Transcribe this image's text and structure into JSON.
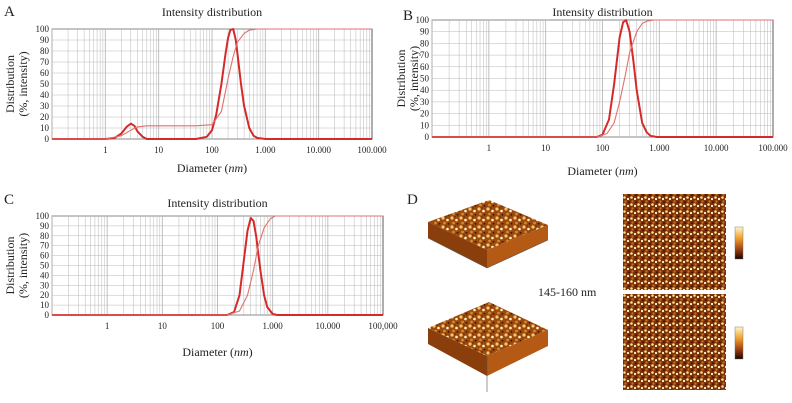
{
  "panels": [
    {
      "letter": "A"
    },
    {
      "letter": "B"
    },
    {
      "letter": "C"
    },
    {
      "letter": "D"
    }
  ],
  "afm_label": "145-160 nm",
  "colors": {
    "curve": "#d42a2a",
    "cumulative": "#e07070",
    "grid": "#b8b8b8",
    "axis": "#333333"
  },
  "chart_data": [
    {
      "type": "line",
      "title": "Intensity distribution",
      "xlabel": "Diameter (nm)",
      "ylabel": "Distribution (%, intensity)",
      "xscale": "log",
      "xlim": [
        0.1,
        100000
      ],
      "ylim": [
        0,
        100
      ],
      "xticks": [
        "1",
        "10",
        "100",
        "1.000",
        "10.000",
        "100.000"
      ],
      "yticks": [
        0,
        10,
        20,
        30,
        40,
        50,
        60,
        70,
        80,
        90,
        100
      ],
      "grid": true,
      "series": [
        {
          "role": "distribution",
          "x": [
            1,
            1.5,
            2,
            2.5,
            3,
            3.5,
            4,
            5,
            6,
            8,
            10,
            20,
            50,
            80,
            100,
            120,
            150,
            180,
            200,
            220,
            250,
            280,
            300,
            350,
            400,
            500,
            600,
            700,
            1000
          ],
          "y": [
            0,
            1,
            5,
            11,
            14,
            12,
            7,
            2,
            0,
            0,
            0,
            0,
            0,
            2,
            8,
            22,
            50,
            78,
            92,
            99,
            100,
            90,
            78,
            50,
            30,
            10,
            3,
            1,
            0
          ]
        },
        {
          "role": "cumulative",
          "x": [
            1,
            2,
            3,
            4,
            6,
            10,
            50,
            100,
            150,
            200,
            250,
            300,
            400,
            500,
            700,
            1000,
            100000
          ],
          "y": [
            0,
            3,
            8,
            11,
            12,
            12,
            12,
            13,
            25,
            55,
            75,
            88,
            96,
            99,
            100,
            100,
            100
          ]
        }
      ]
    },
    {
      "type": "line",
      "title": "Intensity distribution",
      "xlabel": "Diameter (nm)",
      "ylabel": "Distribution (%, intensity)",
      "xscale": "log",
      "xlim": [
        0.1,
        100000
      ],
      "ylim": [
        0,
        100
      ],
      "xticks": [
        "1",
        "10",
        "100",
        "1.000",
        "10.000",
        "100.000"
      ],
      "yticks": [
        0,
        10,
        20,
        30,
        40,
        50,
        60,
        70,
        80,
        90,
        100
      ],
      "grid": true,
      "series": [
        {
          "role": "distribution",
          "x": [
            80,
            100,
            130,
            160,
            200,
            230,
            260,
            300,
            350,
            400,
            500,
            600,
            700,
            900
          ],
          "y": [
            0,
            2,
            15,
            45,
            85,
            98,
            100,
            90,
            65,
            40,
            12,
            4,
            1,
            0
          ]
        },
        {
          "role": "cumulative",
          "x": [
            80,
            120,
            160,
            200,
            250,
            300,
            400,
            500,
            600,
            800,
            100000
          ],
          "y": [
            0,
            3,
            12,
            30,
            52,
            72,
            90,
            97,
            99,
            100,
            100
          ]
        }
      ]
    },
    {
      "type": "line",
      "title": "Intensity distribution",
      "xlabel": "Diameter (nm)",
      "ylabel": "Distribution (%, intensity)",
      "xscale": "log",
      "xlim": [
        0.1,
        100000
      ],
      "ylim": [
        0,
        100
      ],
      "xticks": [
        "1",
        "10",
        "100",
        "1.000",
        "10.000",
        "100,000"
      ],
      "yticks": [
        0,
        10,
        20,
        30,
        40,
        50,
        60,
        70,
        80,
        90,
        100
      ],
      "grid": true,
      "series": [
        {
          "role": "distribution",
          "x": [
            150,
            200,
            250,
            300,
            350,
            400,
            450,
            500,
            600,
            700,
            800,
            1000,
            1200
          ],
          "y": [
            0,
            3,
            20,
            55,
            85,
            98,
            95,
            80,
            45,
            20,
            8,
            1,
            0
          ]
        },
        {
          "role": "cumulative",
          "x": [
            150,
            250,
            350,
            450,
            550,
            700,
            900,
            1100,
            100000
          ],
          "y": [
            0,
            4,
            20,
            45,
            70,
            88,
            97,
            100,
            100
          ]
        }
      ]
    }
  ]
}
